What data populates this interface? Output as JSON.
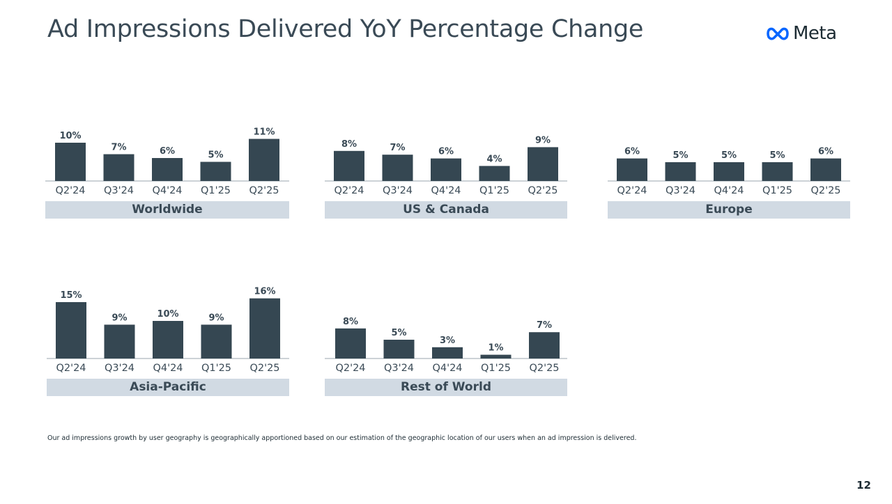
{
  "title": "Ad Impressions Delivered YoY Percentage Change",
  "logo": {
    "text": "Meta",
    "icon": "meta-infinity-icon",
    "color": "#0866ff"
  },
  "colors": {
    "bar": "#354752",
    "axis": "#9aa5ad",
    "label_bg": "#d1dae3",
    "text": "#3a4a56"
  },
  "footnote": "Our ad impressions growth by user geography is geographically apportioned based on our estimation of the geographic location of our users when an ad impression is delivered.",
  "page_number": "12",
  "chart_data": [
    {
      "type": "bar",
      "region": "Worldwide",
      "categories": [
        "Q2'24",
        "Q3'24",
        "Q4'24",
        "Q1'25",
        "Q2'25"
      ],
      "values": [
        10,
        7,
        6,
        5,
        11
      ],
      "labels": [
        "10%",
        "7%",
        "6%",
        "5%",
        "11%"
      ]
    },
    {
      "type": "bar",
      "region": "US & Canada",
      "categories": [
        "Q2'24",
        "Q3'24",
        "Q4'24",
        "Q1'25",
        "Q2'25"
      ],
      "values": [
        8,
        7,
        6,
        4,
        9
      ],
      "labels": [
        "8%",
        "7%",
        "6%",
        "4%",
        "9%"
      ]
    },
    {
      "type": "bar",
      "region": "Europe",
      "categories": [
        "Q2'24",
        "Q3'24",
        "Q4'24",
        "Q1'25",
        "Q2'25"
      ],
      "values": [
        6,
        5,
        5,
        5,
        6
      ],
      "labels": [
        "6%",
        "5%",
        "5%",
        "5%",
        "6%"
      ]
    },
    {
      "type": "bar",
      "region": "Asia-Pacific",
      "categories": [
        "Q2'24",
        "Q3'24",
        "Q4'24",
        "Q1'25",
        "Q2'25"
      ],
      "values": [
        15,
        9,
        10,
        9,
        16
      ],
      "labels": [
        "15%",
        "9%",
        "10%",
        "9%",
        "16%"
      ]
    },
    {
      "type": "bar",
      "region": "Rest of World",
      "categories": [
        "Q2'24",
        "Q3'24",
        "Q4'24",
        "Q1'25",
        "Q2'25"
      ],
      "values": [
        8,
        5,
        3,
        1,
        7
      ],
      "labels": [
        "8%",
        "5%",
        "3%",
        "1%",
        "7%"
      ]
    }
  ]
}
